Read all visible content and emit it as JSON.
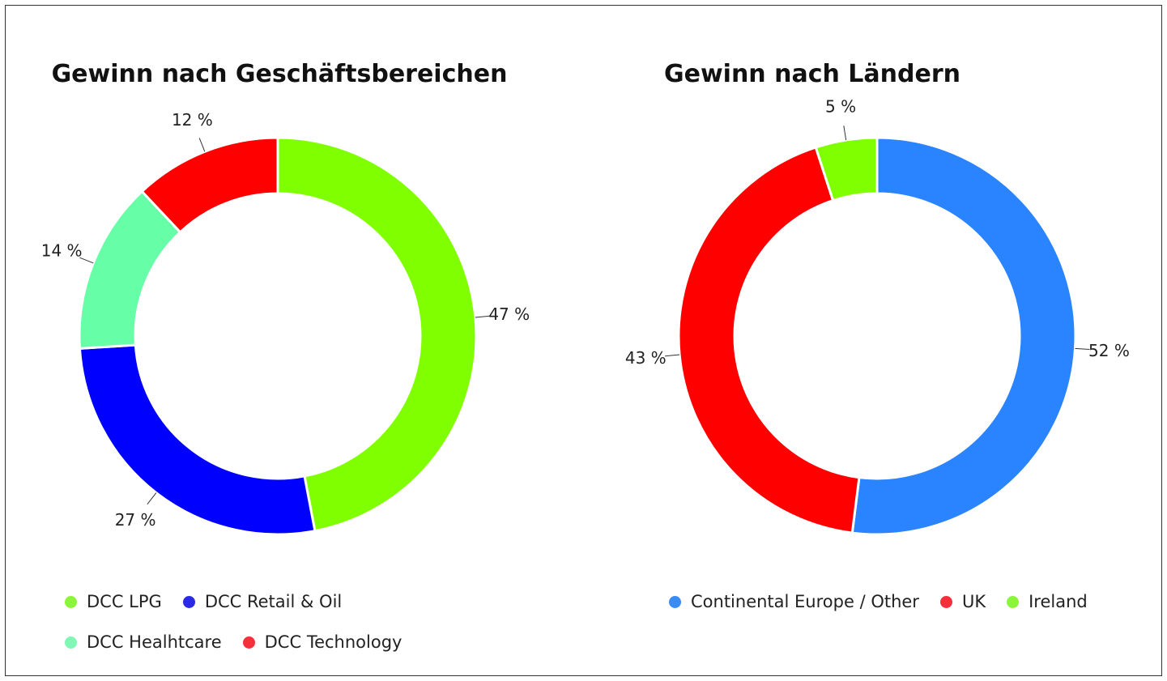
{
  "chart_data": [
    {
      "type": "pie",
      "title": "Gewinn nach Geschäftsbereichen",
      "categories": [
        "DCC LPG",
        "DCC Retail & Oil",
        "DCC Healhtcare",
        "DCC Technology"
      ],
      "values": [
        47,
        27,
        14,
        12
      ],
      "labels": [
        "47 %",
        "27 %",
        "14 %",
        "12 %"
      ],
      "colors": [
        "#80ff00",
        "#0000ff",
        "#66ffa8",
        "#ff0000"
      ],
      "legend_colors": [
        "#8cf53a",
        "#2a2ae6",
        "#80f7b4",
        "#f5303a"
      ],
      "legend": "bottom"
    },
    {
      "type": "pie",
      "title": "Gewinn nach Ländern",
      "categories": [
        "Continental Europe / Other",
        "UK",
        "Ireland"
      ],
      "values": [
        52,
        43,
        5
      ],
      "labels": [
        "52 %",
        "43 %",
        "5 %"
      ],
      "colors": [
        "#2a84ff",
        "#ff0000",
        "#80ff00"
      ],
      "legend_colors": [
        "#3a8cf5",
        "#f5303a",
        "#8cf53a"
      ],
      "legend": "bottom"
    }
  ]
}
